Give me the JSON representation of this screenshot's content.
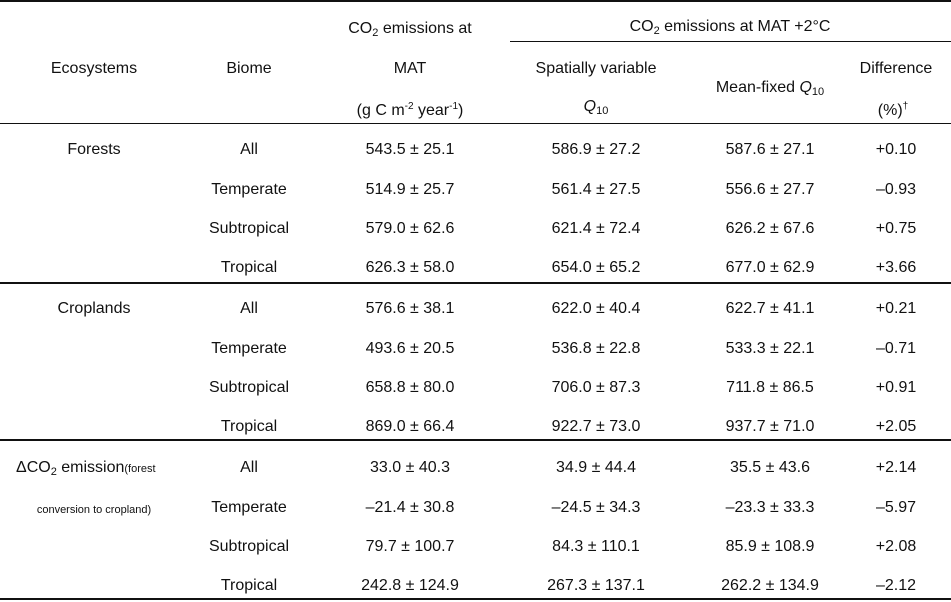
{
  "header": {
    "ecosystems": "Ecosystems",
    "biome": "Biome",
    "mat_col_line1_pre": "CO",
    "mat_col_line1_sub": "2",
    "mat_col_line1_post": " emissions at",
    "mat_col_line2": "MAT",
    "units_pre": "(g C m",
    "units_sup1": "-2",
    "units_mid": " year",
    "units_sup2": "-1",
    "units_post": ")",
    "group_pre": "CO",
    "group_sub": "2",
    "group_post": " emissions at MAT +2°C",
    "spatial_line1": "Spatially variable",
    "spatial_q": "Q",
    "spatial_q_sub": "10",
    "meanfixed_pre": "Mean-fixed ",
    "meanfixed_q": "Q",
    "meanfixed_q_sub": "10",
    "difference_line1": "Difference",
    "difference_line2": "(%)",
    "difference_sup": "†"
  },
  "groups": [
    {
      "label": "Forests",
      "rows": [
        {
          "biome": "All",
          "mat": "543.5 ± 25.1",
          "spatial": "586.9 ± 27.2",
          "fixed": "587.6 ± 27.1",
          "diff": "+0.10"
        },
        {
          "biome": "Temperate",
          "mat": "514.9 ± 25.7",
          "spatial": "561.4 ± 27.5",
          "fixed": "556.6 ± 27.7",
          "diff": "–0.93"
        },
        {
          "biome": "Subtropical",
          "mat": "579.0 ± 62.6",
          "spatial": "621.4 ± 72.4",
          "fixed": "626.2 ± 67.6",
          "diff": "+0.75"
        },
        {
          "biome": "Tropical",
          "mat": "626.3 ± 58.0",
          "spatial": "654.0 ± 65.2",
          "fixed": "677.0 ± 62.9",
          "diff": "+3.66"
        }
      ]
    },
    {
      "label": "Croplands",
      "rows": [
        {
          "biome": "All",
          "mat": "576.6 ± 38.1",
          "spatial": "622.0 ± 40.4",
          "fixed": "622.7 ± 41.1",
          "diff": "+0.21"
        },
        {
          "biome": "Temperate",
          "mat": "493.6 ± 20.5",
          "spatial": "536.8 ± 22.8",
          "fixed": "533.3 ± 22.1",
          "diff": "–0.71"
        },
        {
          "biome": "Subtropical",
          "mat": "658.8 ± 80.0",
          "spatial": "706.0 ± 87.3",
          "fixed": "711.8 ± 86.5",
          "diff": "+0.91"
        },
        {
          "biome": "Tropical",
          "mat": "869.0 ± 66.4",
          "spatial": "922.7 ± 73.0",
          "fixed": "937.7 ± 71.0",
          "diff": "+2.05"
        }
      ]
    },
    {
      "label_pre": "ΔCO",
      "label_sub": "2",
      "label_main": " emission",
      "label_small1": "(forest",
      "label_small2": "conversion to cropland)",
      "rows": [
        {
          "biome": "All",
          "mat": "33.0 ± 40.3",
          "spatial": "34.9 ± 44.4",
          "fixed": "35.5 ± 43.6",
          "diff": "+2.14"
        },
        {
          "biome": "Temperate",
          "mat": "–21.4 ± 30.8",
          "spatial": "–24.5 ± 34.3",
          "fixed": "–23.3 ± 33.3",
          "diff": "–5.97"
        },
        {
          "biome": "Subtropical",
          "mat": "79.7 ± 100.7",
          "spatial": "84.3 ± 110.1",
          "fixed": "85.9 ± 108.9",
          "diff": "+2.08"
        },
        {
          "biome": "Tropical",
          "mat": "242.8 ± 124.9",
          "spatial": "267.3 ± 137.1",
          "fixed": "262.2 ± 134.9",
          "diff": "–2.12"
        }
      ]
    }
  ]
}
